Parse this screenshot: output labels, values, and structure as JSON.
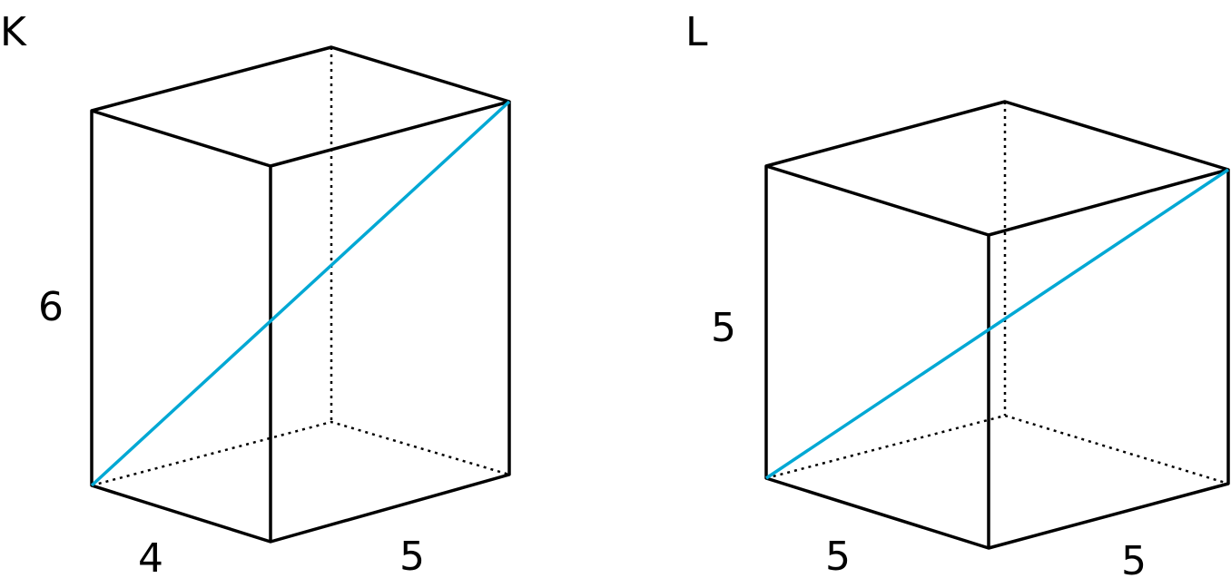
{
  "diagram_k": {
    "label": "K",
    "height": "6",
    "depth": "4",
    "width": "5"
  },
  "diagram_l": {
    "label": "L",
    "height": "5",
    "depth": "5",
    "width": "5"
  },
  "colors": {
    "diagonal": "#00a8d4",
    "edges": "#000000"
  }
}
